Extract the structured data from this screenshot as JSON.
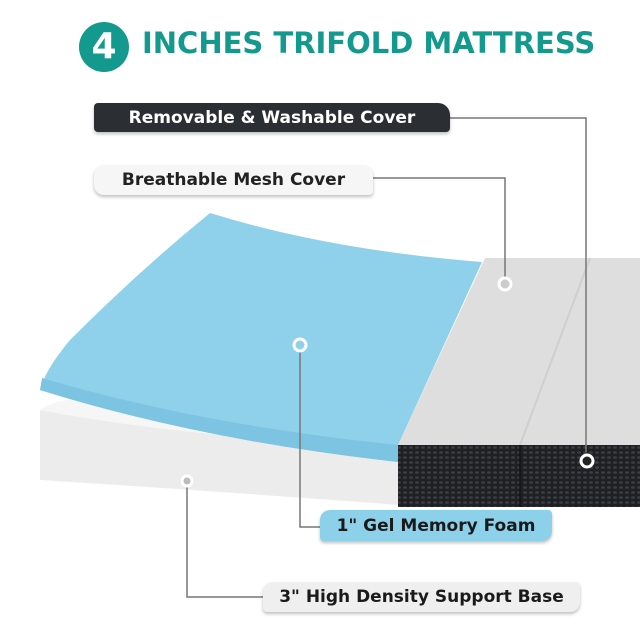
{
  "header": {
    "number": "4",
    "title": "INCHES TRIFOLD MATTRESS"
  },
  "labels": {
    "cover": "Removable & Washable Cover",
    "mesh": "Breathable Mesh Cover",
    "gel": "1\" Gel  Memory Foam",
    "base": "3\"  High Density Support Base"
  },
  "colors": {
    "accent": "#14998e",
    "gel": "#8dd0ea",
    "dark": "#2b2e33"
  }
}
